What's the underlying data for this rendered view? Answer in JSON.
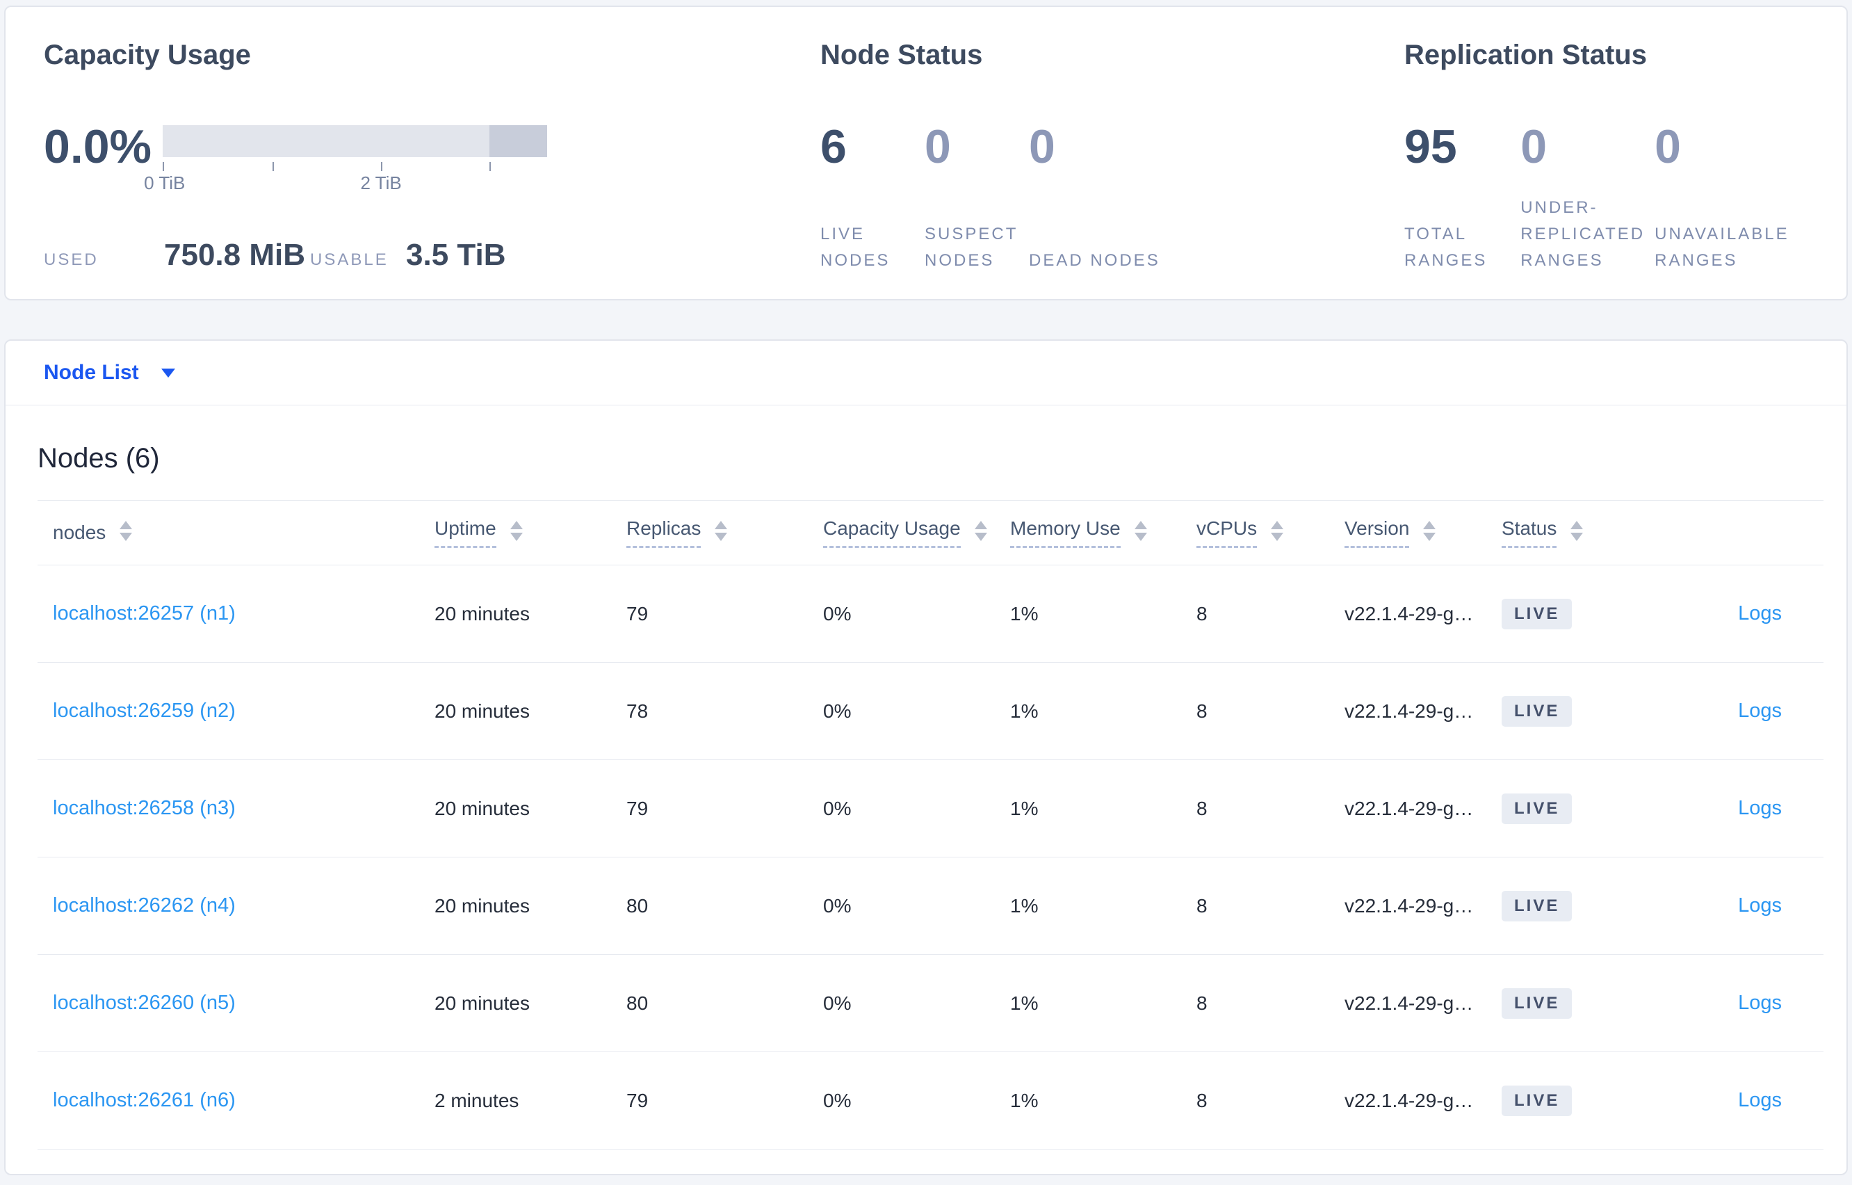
{
  "summary": {
    "capacity": {
      "title": "Capacity Usage",
      "percent": "0.0%",
      "axis_ticks": [
        "0 TiB",
        "2 TiB"
      ],
      "used_label": "USED",
      "used_value": "750.8 MiB",
      "usable_label": "USABLE",
      "usable_value": "3.5 TiB"
    },
    "node_status": {
      "title": "Node Status",
      "stats": [
        {
          "value": "6",
          "label": "LIVE NODES"
        },
        {
          "value": "0",
          "label": "SUSPECT NODES"
        },
        {
          "value": "0",
          "label": "DEAD NODES"
        }
      ]
    },
    "replication": {
      "title": "Replication Status",
      "stats": [
        {
          "value": "95",
          "label": "TOTAL RANGES"
        },
        {
          "value": "0",
          "label": "UNDER-REPLICATED RANGES"
        },
        {
          "value": "0",
          "label": "UNAVAILABLE RANGES"
        }
      ]
    }
  },
  "node_list": {
    "dropdown_label": "Node List",
    "section_title": "Nodes (6)",
    "columns": [
      "nodes",
      "Uptime",
      "Replicas",
      "Capacity Usage",
      "Memory Use",
      "vCPUs",
      "Version",
      "Status"
    ],
    "rows": [
      {
        "node": "localhost:26257 (n1)",
        "uptime": "20 minutes",
        "replicas": "79",
        "capacity": "0%",
        "memory": "1%",
        "vcpus": "8",
        "version": "v22.1.4-29-g…",
        "status": "LIVE",
        "logs": "Logs"
      },
      {
        "node": "localhost:26259 (n2)",
        "uptime": "20 minutes",
        "replicas": "78",
        "capacity": "0%",
        "memory": "1%",
        "vcpus": "8",
        "version": "v22.1.4-29-g…",
        "status": "LIVE",
        "logs": "Logs"
      },
      {
        "node": "localhost:26258 (n3)",
        "uptime": "20 minutes",
        "replicas": "79",
        "capacity": "0%",
        "memory": "1%",
        "vcpus": "8",
        "version": "v22.1.4-29-g…",
        "status": "LIVE",
        "logs": "Logs"
      },
      {
        "node": "localhost:26262 (n4)",
        "uptime": "20 minutes",
        "replicas": "80",
        "capacity": "0%",
        "memory": "1%",
        "vcpus": "8",
        "version": "v22.1.4-29-g…",
        "status": "LIVE",
        "logs": "Logs"
      },
      {
        "node": "localhost:26260 (n5)",
        "uptime": "20 minutes",
        "replicas": "80",
        "capacity": "0%",
        "memory": "1%",
        "vcpus": "8",
        "version": "v22.1.4-29-g…",
        "status": "LIVE",
        "logs": "Logs"
      },
      {
        "node": "localhost:26261 (n6)",
        "uptime": "2 minutes",
        "replicas": "79",
        "capacity": "0%",
        "memory": "1%",
        "vcpus": "8",
        "version": "v22.1.4-29-g…",
        "status": "LIVE",
        "logs": "Logs"
      }
    ]
  },
  "colors": {
    "link_blue": "#2b96f2",
    "dropdown_blue": "#1b57f0",
    "badge_bg": "#e8ecf3",
    "badge_text": "#44506b",
    "stat_dark": "#3d4f6b",
    "stat_muted": "#8d98b7",
    "capacity_track": "#e2e5ec",
    "capacity_other_segment": "#c8cdda"
  }
}
